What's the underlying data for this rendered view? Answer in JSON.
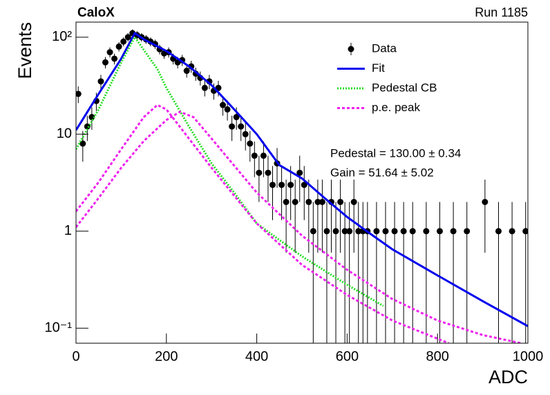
{
  "chart_data": {
    "type": "line",
    "title": "CaloX",
    "subtitle": "Run 1185",
    "x_label": "ADC",
    "y_label": "Events",
    "log_y": true,
    "legend": "upper right",
    "xlim": [
      0,
      1000
    ],
    "ylim": [
      0.07,
      143
    ],
    "xticks": [
      0,
      200,
      400,
      600,
      800,
      1000
    ],
    "yticks": [
      {
        "value": 0.1,
        "label": "10⁻¹"
      },
      1,
      10,
      {
        "value": 100,
        "label": "10²"
      }
    ],
    "annotations": [
      "Pedestal = 130.00 ± 0.34",
      "Gain = 51.64 ± 5.02"
    ],
    "series": [
      {
        "name": "Data",
        "color": "#000000",
        "markers": true,
        "x": [
          5,
          15,
          25,
          35,
          45,
          55,
          65,
          75,
          85,
          95,
          105,
          115,
          125,
          135,
          145,
          155,
          165,
          175,
          185,
          195,
          205,
          215,
          225,
          235,
          245,
          255,
          265,
          275,
          285,
          295,
          305,
          315,
          325,
          335,
          345,
          355,
          365,
          375,
          385,
          395,
          405,
          415,
          425,
          435,
          445,
          455,
          465,
          475,
          485,
          495,
          505,
          515,
          525,
          535,
          545,
          555,
          565,
          575,
          585,
          595,
          605,
          615,
          625,
          635,
          645,
          665,
          685,
          705,
          725,
          745,
          775,
          805,
          835,
          865,
          905,
          935,
          965,
          995
        ],
        "values": [
          26,
          8,
          12,
          15,
          22,
          35,
          55,
          70,
          60,
          80,
          90,
          100,
          110,
          105,
          100,
          95,
          90,
          85,
          75,
          68,
          70,
          60,
          55,
          58,
          45,
          50,
          42,
          38,
          30,
          35,
          28,
          30,
          20,
          18,
          12,
          15,
          12,
          10,
          8,
          6,
          4,
          6,
          4,
          3,
          5,
          3,
          2,
          3,
          2,
          4,
          3,
          2,
          1,
          2,
          2,
          1,
          2,
          1,
          2,
          1,
          1,
          2,
          1,
          1,
          1,
          1,
          1,
          1,
          1,
          1,
          1,
          1,
          1,
          1,
          2,
          1,
          1,
          1
        ],
        "errors": [
          5.1,
          2.8,
          3.5,
          3.9,
          4.7,
          5.9,
          7.4,
          8.4,
          7.7,
          8.9,
          9.5,
          10,
          10.5,
          10.2,
          10,
          9.7,
          9.5,
          9.2,
          8.7,
          8.2,
          8.4,
          7.7,
          7.4,
          7.6,
          6.7,
          7.1,
          6.5,
          6.2,
          5.5,
          5.9,
          5.3,
          5.5,
          4.5,
          4.2,
          3.5,
          3.9,
          3.5,
          3.2,
          2.8,
          2.4,
          2,
          2.4,
          2,
          1.7,
          2.2,
          1.7,
          1.4,
          1.7,
          1.4,
          2,
          1.7,
          1.4,
          1,
          1.4,
          1.4,
          1,
          1.4,
          1,
          1.4,
          1,
          1,
          1.4,
          1,
          1,
          1,
          1,
          1,
          1,
          1,
          1,
          1,
          1,
          1,
          1,
          1.4,
          1,
          1,
          1
        ]
      },
      {
        "name": "Fit",
        "color": "#0000ee",
        "style": "solid",
        "x": [
          0,
          50,
          100,
          130,
          150,
          200,
          250,
          300,
          350,
          400,
          450,
          500,
          550,
          600,
          650,
          700,
          800,
          900,
          1000
        ],
        "values": [
          11,
          26,
          60,
          110,
          95,
          72,
          50,
          32,
          18,
          10,
          4.8,
          3.5,
          2.2,
          1.4,
          0.95,
          0.65,
          0.35,
          0.19,
          0.105
        ]
      },
      {
        "name": "Pedestal CB",
        "color": "#22dd22",
        "style": "dotted",
        "x": [
          0,
          50,
          100,
          130,
          180,
          200,
          250,
          300,
          350,
          400,
          500,
          600,
          680
        ],
        "values": [
          7,
          18,
          55,
          100,
          47,
          30,
          12,
          5,
          2.5,
          1.2,
          0.55,
          0.28,
          0.17
        ]
      },
      {
        "name": "p.e. peak",
        "color": "#ee22ee",
        "style": "dashed",
        "x": [
          0,
          50,
          100,
          150,
          180,
          200,
          250,
          300,
          400,
          500,
          600,
          700,
          825
        ],
        "values": [
          1.6,
          3.2,
          7,
          15,
          20,
          18,
          9,
          4.5,
          1.2,
          0.45,
          0.22,
          0.12,
          0.07
        ]
      },
      {
        "color": "#ee22ee",
        "style": "dashed",
        "x": [
          0,
          50,
          100,
          150,
          200,
          230,
          260,
          300,
          400,
          500,
          600,
          700,
          800,
          900,
          985
        ],
        "values": [
          1.1,
          2.2,
          4.5,
          8.5,
          14,
          17,
          15,
          9,
          2.5,
          0.9,
          0.4,
          0.2,
          0.12,
          0.085,
          0.07
        ]
      }
    ]
  }
}
